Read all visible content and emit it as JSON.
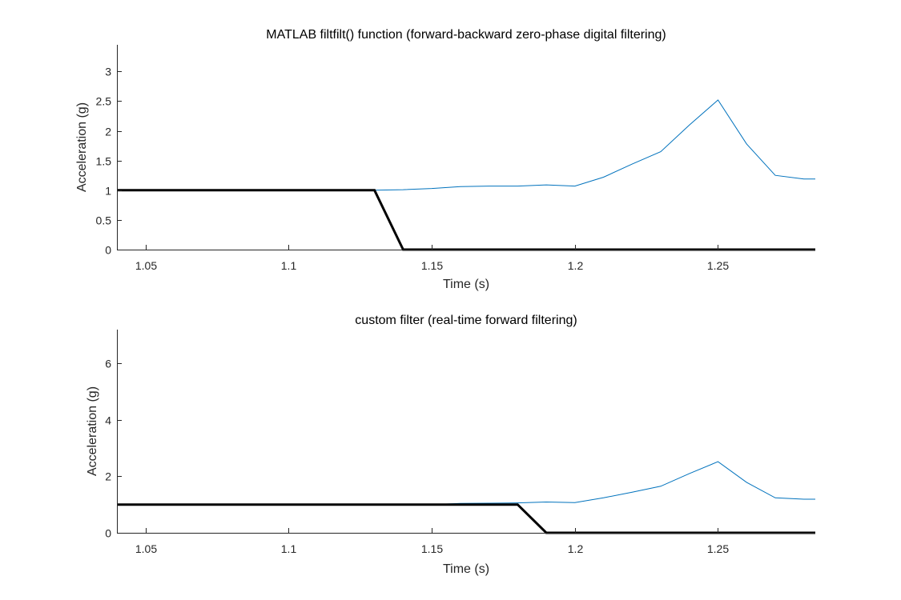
{
  "chart_data": [
    {
      "type": "line",
      "title": "MATLAB filtfilt() function (forward-backward zero-phase digital filtering)",
      "xlabel": "Time (s)",
      "ylabel": "Acceleration (g)",
      "xlim": [
        1.04,
        1.284
      ],
      "ylim": [
        0,
        3.45
      ],
      "xticks": [
        1.05,
        1.1,
        1.15,
        1.2,
        1.25
      ],
      "xtick_labels": [
        "1.05",
        "1.1",
        "1.15",
        "1.2",
        "1.25"
      ],
      "yticks": [
        0,
        0.5,
        1,
        1.5,
        2,
        2.5,
        3
      ],
      "ytick_labels": [
        "0",
        "0.5",
        "1",
        "1.5",
        "2",
        "2.5",
        "3"
      ],
      "grid": false,
      "series": [
        {
          "color": "#0072BD",
          "line_width": 1,
          "x": [
            1.04,
            1.13,
            1.14,
            1.15,
            1.16,
            1.17,
            1.18,
            1.19,
            1.2,
            1.21,
            1.22,
            1.23,
            1.24,
            1.25,
            1.26,
            1.27,
            1.28,
            1.284
          ],
          "y": [
            1.0,
            1.0,
            1.01,
            1.03,
            1.06,
            1.07,
            1.07,
            1.09,
            1.07,
            1.22,
            1.44,
            1.65,
            2.1,
            2.52,
            1.78,
            1.25,
            1.19,
            1.19
          ]
        },
        {
          "color": "#000000",
          "line_width": 3,
          "x": [
            1.04,
            1.13,
            1.14,
            1.284
          ],
          "y": [
            1,
            1,
            0,
            0
          ]
        }
      ]
    },
    {
      "type": "line",
      "title": "custom filter (real-time forward filtering)",
      "xlabel": "Time (s)",
      "ylabel": "Acceleration (g)",
      "xlim": [
        1.04,
        1.284
      ],
      "ylim": [
        0,
        7.2
      ],
      "xticks": [
        1.05,
        1.1,
        1.15,
        1.2,
        1.25
      ],
      "xtick_labels": [
        "1.05",
        "1.1",
        "1.15",
        "1.2",
        "1.25"
      ],
      "yticks": [
        0,
        2,
        4,
        6
      ],
      "ytick_labels": [
        "0",
        "2",
        "4",
        "6"
      ],
      "grid": false,
      "series": [
        {
          "color": "#0072BD",
          "line_width": 1,
          "x": [
            1.04,
            1.15,
            1.16,
            1.17,
            1.18,
            1.19,
            1.2,
            1.21,
            1.22,
            1.23,
            1.24,
            1.25,
            1.26,
            1.27,
            1.28,
            1.284
          ],
          "y": [
            1.0,
            1.0,
            1.04,
            1.05,
            1.06,
            1.09,
            1.07,
            1.24,
            1.44,
            1.65,
            2.1,
            2.52,
            1.79,
            1.24,
            1.19,
            1.19
          ]
        },
        {
          "color": "#000000",
          "line_width": 3,
          "x": [
            1.04,
            1.18,
            1.19,
            1.284
          ],
          "y": [
            1,
            1,
            0,
            0
          ]
        }
      ]
    }
  ]
}
